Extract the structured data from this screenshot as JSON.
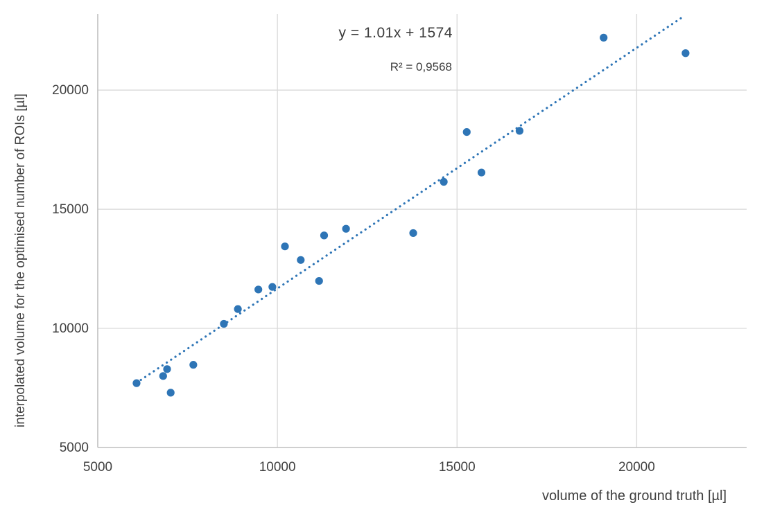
{
  "chart_data": {
    "type": "scatter",
    "title": "",
    "xlabel": "volume of the ground truth [µl]",
    "ylabel": "interpolated volume for the optimised number of ROIs [µl]",
    "xlim": [
      5000,
      23060
    ],
    "ylim": [
      5000,
      23200
    ],
    "x_ticks": [
      5000,
      10000,
      15000,
      20000
    ],
    "y_ticks": [
      5000,
      10000,
      15000,
      20000
    ],
    "grid": true,
    "legend": "none",
    "points": [
      [
        6080,
        7700
      ],
      [
        6820,
        8000
      ],
      [
        6930,
        8290
      ],
      [
        7030,
        7300
      ],
      [
        7660,
        8470
      ],
      [
        8510,
        10190
      ],
      [
        8900,
        10810
      ],
      [
        9470,
        11630
      ],
      [
        9860,
        11740
      ],
      [
        10210,
        13440
      ],
      [
        10650,
        12870
      ],
      [
        11160,
        11990
      ],
      [
        11300,
        13900
      ],
      [
        11910,
        14180
      ],
      [
        13780,
        14000
      ],
      [
        14630,
        16150
      ],
      [
        15270,
        18240
      ],
      [
        15680,
        16540
      ],
      [
        16740,
        18290
      ],
      [
        19080,
        22200
      ],
      [
        21360,
        21550
      ]
    ],
    "trendline": {
      "label": "y = 1.01x + 1574",
      "r2_label": "R² = 0,9568",
      "slope": 1.01,
      "intercept": 1574,
      "x_start": 6200,
      "x_end": 21345,
      "style": "dotted"
    },
    "colors": {
      "marker": "#2E75B6",
      "trendline": "#2E75B6",
      "gridline": "#D9D9D9",
      "axis": "#BFBFBF",
      "tick_text": "#404040",
      "annotation_text": "#3b3b3b"
    }
  }
}
